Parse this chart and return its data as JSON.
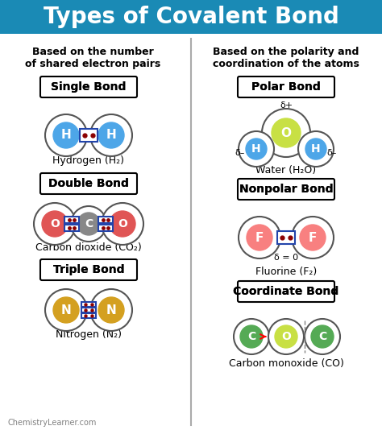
{
  "title": "Types of Covalent Bond",
  "title_bg": "#1a8ab5",
  "title_color": "white",
  "title_fontsize": 20,
  "left_header": "Based on the number\nof shared electron pairs",
  "right_header": "Based on the polarity and\ncoordination of the atoms",
  "divider_color": "#aaaaaa",
  "bond_labels": [
    "Single Bond",
    "Double Bond",
    "Triple Bond"
  ],
  "bond_labels_right": [
    "Polar Bond",
    "Nonpolar Bond",
    "Coordinate Bond"
  ],
  "caption_left": [
    "Hydrogen (H₂)",
    "Carbon dioxide (CO₂)",
    "Nitrogen (N₂)"
  ],
  "caption_right": [
    "Water (H₂O)",
    "Fluorine (F₂)",
    "Carbon monoxide (CO)"
  ],
  "bg_color": "white",
  "footer": "ChemistryLearner.com"
}
